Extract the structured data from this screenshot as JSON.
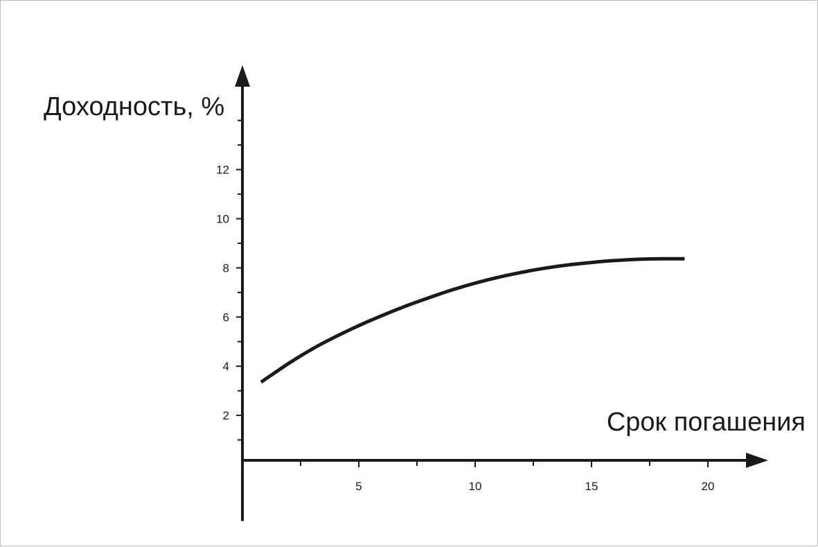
{
  "chart_data": {
    "type": "line",
    "title": "",
    "xlabel": "Срок погашения",
    "ylabel": "Доходность, %",
    "xlim": [
      0,
      22.5
    ],
    "ylim": [
      -2.3,
      16.2
    ],
    "x_ticks": [
      5,
      10,
      15,
      20
    ],
    "x_minor_ticks": [
      2.5,
      7.5,
      12.5,
      17.5
    ],
    "y_ticks": [
      2,
      4,
      6,
      8,
      10,
      12
    ],
    "y_minor_ticks": [
      1,
      3,
      5,
      7,
      9,
      11,
      13,
      14
    ],
    "grid": false,
    "series": [
      {
        "x": [
          0.8,
          2,
          3,
          4,
          5,
          6,
          7,
          8,
          9,
          10,
          11,
          12,
          13,
          14,
          15,
          16,
          17,
          18,
          19
        ],
        "y": [
          3.35,
          4.12,
          4.7,
          5.2,
          5.65,
          6.06,
          6.44,
          6.78,
          7.1,
          7.38,
          7.62,
          7.82,
          7.99,
          8.12,
          8.22,
          8.3,
          8.35,
          8.37,
          8.37
        ]
      }
    ]
  }
}
